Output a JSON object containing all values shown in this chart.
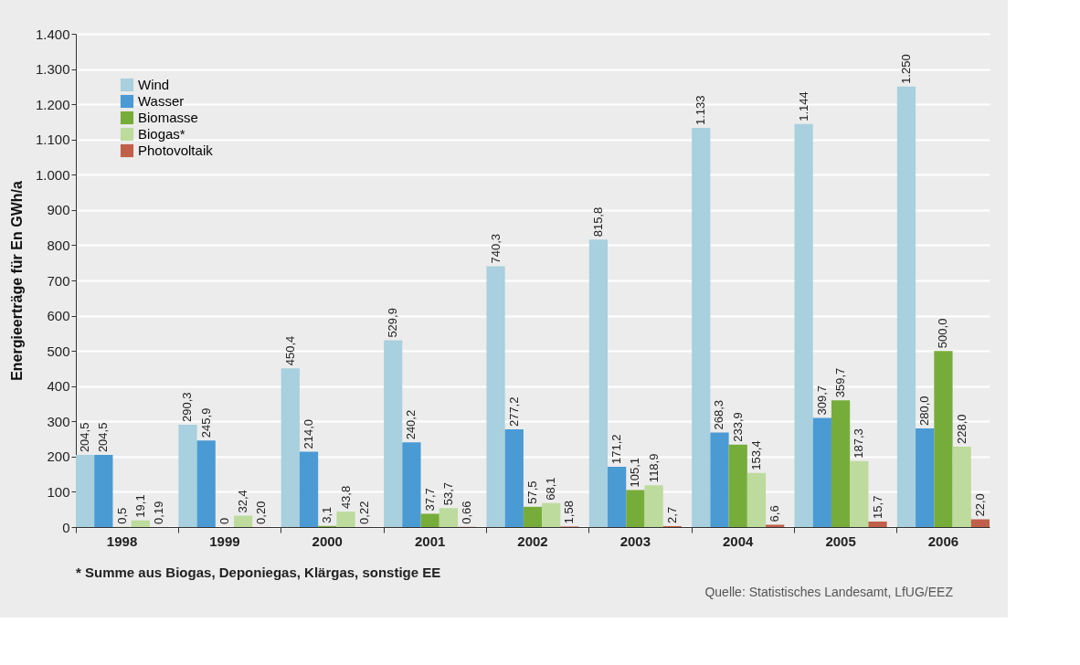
{
  "chart_data": {
    "type": "bar",
    "ylabel": "Energieerträge für En GWh/a",
    "categories": [
      "1998",
      "1999",
      "2000",
      "2001",
      "2002",
      "2003",
      "2004",
      "2005",
      "2006"
    ],
    "series": [
      {
        "name": "Wind",
        "color": "#a8d0de",
        "values": [
          204.5,
          290.3,
          450.4,
          529.9,
          740.3,
          815.8,
          1133,
          1144,
          1250
        ],
        "value_labels": [
          "204,5",
          "290,3",
          "450,4",
          "529,9",
          "740,3",
          "815,8",
          "1.133",
          "1.144",
          "1.250"
        ]
      },
      {
        "name": "Wasser",
        "color": "#4a9ad4",
        "values": [
          204.5,
          245.9,
          214.0,
          240.2,
          277.2,
          171.2,
          268.3,
          309.7,
          280.0
        ],
        "value_labels": [
          "204,5",
          "245,9",
          "214,0",
          "240,2",
          "277,2",
          "171,2",
          "268,3",
          "309,7",
          "280,0"
        ]
      },
      {
        "name": "Biomasse",
        "color": "#76ad3a",
        "values": [
          0.5,
          0,
          3.1,
          37.7,
          57.5,
          105.1,
          233.9,
          359.7,
          500.0
        ],
        "value_labels": [
          "0,5",
          "0",
          "3,1",
          "37,7",
          "57,5",
          "105,1",
          "233,9",
          "359,7",
          "500,0"
        ]
      },
      {
        "name": "Biogas*",
        "color": "#bcdb9c",
        "values": [
          19.1,
          32.4,
          43.8,
          53.7,
          68.1,
          118.9,
          153.4,
          187.3,
          228.0
        ],
        "value_labels": [
          "19,1",
          "32,4",
          "43,8",
          "53,7",
          "68,1",
          "118,9",
          "153,4",
          "187,3",
          "228,0"
        ]
      },
      {
        "name": "Photovoltaik",
        "color": "#c0604a",
        "values": [
          0.19,
          0.2,
          0.22,
          0.66,
          1.58,
          2.7,
          6.6,
          15.7,
          22.0
        ],
        "value_labels": [
          "0,19",
          "0,20",
          "0,22",
          "0,66",
          "1,58",
          "2,7",
          "6,6",
          "15,7",
          "22,0"
        ]
      }
    ],
    "ylim": [
      0,
      1400
    ],
    "yticks": [
      0,
      100,
      200,
      300,
      400,
      500,
      600,
      700,
      800,
      900,
      {
        "value": 1000,
        "label": "1.000"
      },
      {
        "value": 1100,
        "label": "1.100"
      },
      {
        "value": 1200,
        "label": "1.200"
      },
      {
        "value": 1300,
        "label": "1.300"
      },
      {
        "value": 1400,
        "label": "1.400"
      }
    ],
    "grid": "y",
    "legend": "top left",
    "annotations": [
      "* Summe aus Biogas, Deponiegas, Klärgas, sonstige EE",
      "Quelle: Statistisches Landesamt, LfUG/EEZ"
    ]
  }
}
